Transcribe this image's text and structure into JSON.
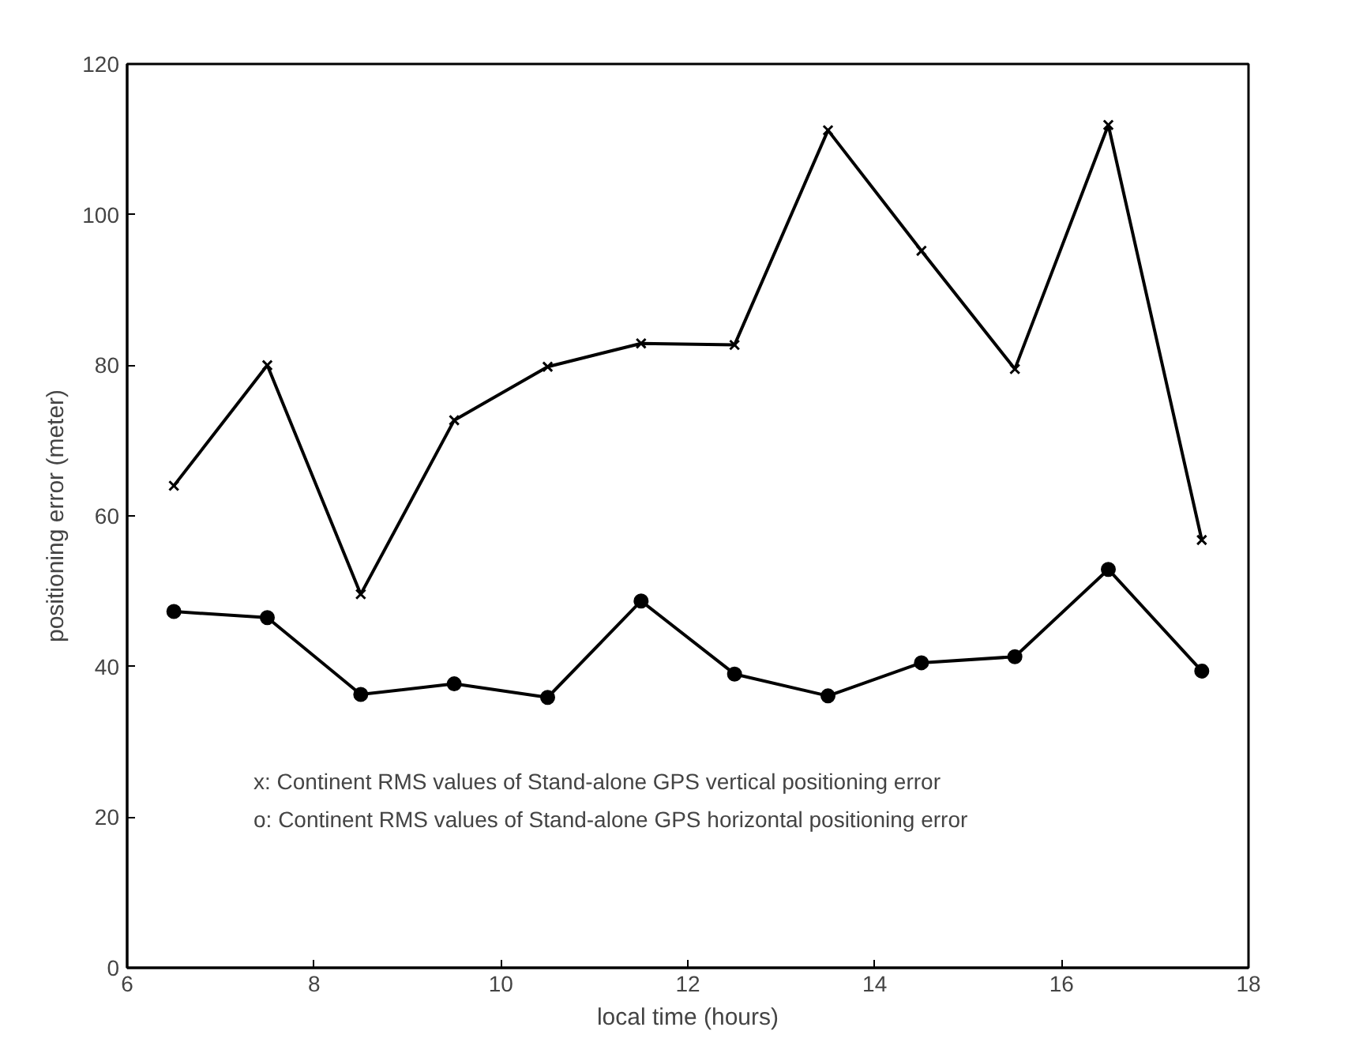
{
  "chart_data": {
    "type": "line",
    "xlabel": "local time (hours)",
    "ylabel": "positioning error (meter)",
    "x": [
      6.5,
      7.5,
      8.5,
      9.5,
      10.5,
      11.5,
      12.5,
      13.5,
      14.5,
      15.5,
      16.5,
      17.5
    ],
    "series": [
      {
        "color": "#000000",
        "marker": "cross",
        "values": [
          64,
          80,
          49.6,
          72.7,
          79.8,
          82.9,
          82.7,
          111.2,
          95.2,
          79.5,
          111.9,
          56.8
        ]
      },
      {
        "color": "#000000",
        "marker": "circle",
        "values": [
          47.3,
          46.5,
          36.3,
          37.7,
          35.9,
          48.7,
          39,
          36.1,
          40.5,
          41.3,
          52.9,
          39.4
        ]
      }
    ],
    "xlim": [
      6,
      18
    ],
    "xticks": [
      6,
      8,
      10,
      12,
      14,
      16,
      18
    ],
    "ylim": [
      0,
      120
    ],
    "yticks": [
      0,
      20,
      40,
      60,
      80,
      100,
      120
    ],
    "line_style": "solid",
    "annotations": [
      {
        "text": "x: Continent RMS values of Stand-alone GPS vertical positioning error"
      },
      {
        "text": "o: Continent RMS values of Stand-alone GPS horizontal positioning error"
      }
    ]
  }
}
